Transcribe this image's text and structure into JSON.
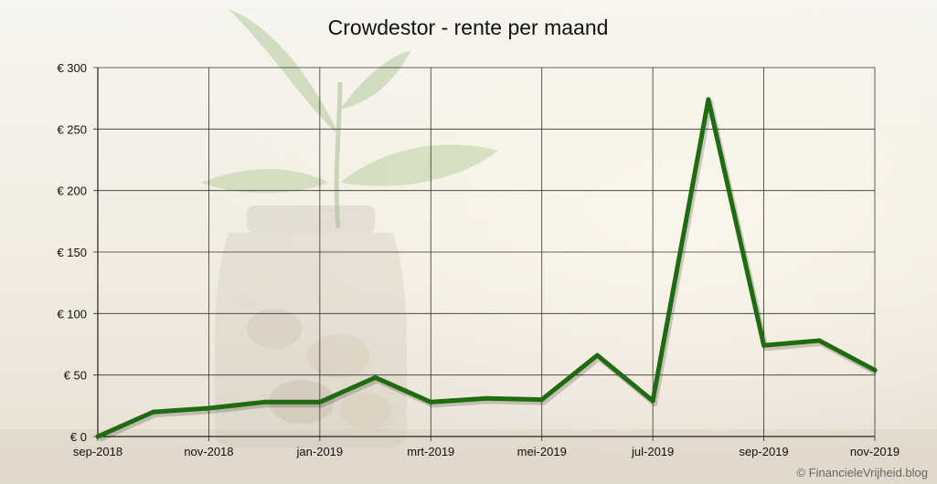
{
  "chart_data": {
    "type": "line",
    "title": "Crowdestor - rente per maand",
    "xlabel": "",
    "ylabel": "",
    "x": [
      "sep-2018",
      "okt-2018",
      "nov-2018",
      "dec-2018",
      "jan-2019",
      "feb-2019",
      "mrt-2019",
      "apr-2019",
      "mei-2019",
      "jun-2019",
      "jul-2019",
      "aug-2019",
      "sep-2019",
      "okt-2019",
      "nov-2019"
    ],
    "x_tick_labels": [
      "sep-2018",
      "nov-2018",
      "jan-2019",
      "mrt-2019",
      "mei-2019",
      "jul-2019",
      "sep-2019",
      "nov-2019"
    ],
    "y_tick_labels": [
      "€ 0",
      "€ 50",
      "€ 100",
      "€ 150",
      "€ 200",
      "€ 250",
      "€ 300"
    ],
    "ylim": [
      0,
      300
    ],
    "grid": true,
    "legend": "none",
    "series": [
      {
        "values": [
          0,
          20,
          23,
          28,
          28,
          48,
          28,
          31,
          30,
          66,
          29,
          274,
          74,
          78,
          54
        ],
        "color": "#1f6b12"
      }
    ]
  },
  "copyright": "© FinancieleVrijheid.blog",
  "colors": {
    "line": "#1f6b12",
    "grid": "#333333",
    "text": "#111111"
  }
}
